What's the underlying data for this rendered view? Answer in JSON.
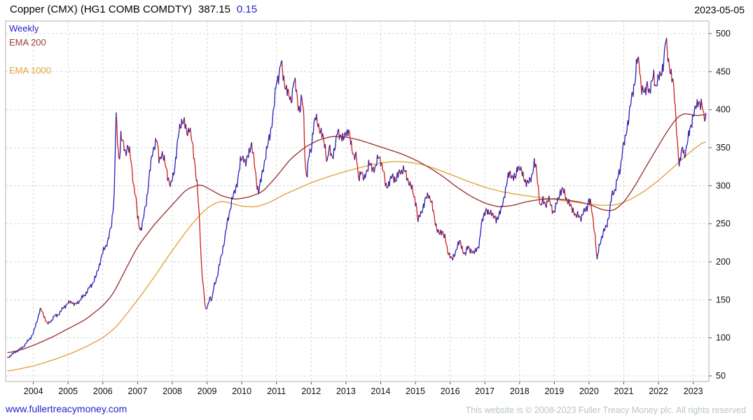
{
  "header": {
    "title": "Copper (CMX) (HG1 COMB COMDTY)",
    "price": "387.15",
    "change": "0.15",
    "date": "2023-05-05"
  },
  "footer": {
    "link": "www.fullertreacymoney.com",
    "copyright": "This website is © 2008-2023 Fuller Treacy Money plc. All rights reserved"
  },
  "chart_data": {
    "type": "line",
    "style": "weekly-ohlc-bars",
    "title": "Copper (CMX) (HG1 COMB COMDTY)",
    "legend": [
      "Weekly",
      "EMA 200",
      "EMA 1000"
    ],
    "legend_position": "top-left",
    "grid": "dashed",
    "x_domain": [
      2003.2,
      2023.45
    ],
    "y_domain": [
      50,
      500
    ],
    "x_ticks": [
      "2004",
      "2005",
      "2006",
      "2007",
      "2008",
      "2009",
      "2010",
      "2011",
      "2012",
      "2013",
      "2014",
      "2015",
      "2016",
      "2017",
      "2018",
      "2019",
      "2020",
      "2021",
      "2022",
      "2023"
    ],
    "y_ticks": [
      50,
      100,
      150,
      200,
      250,
      300,
      350,
      400,
      450,
      500
    ],
    "colors": {
      "up": "#2222bb",
      "down": "#cc2020",
      "ema200": "#9b3b38",
      "ema1000": "#e1a53e",
      "grid": "#d8d8d8",
      "frame": "#b0b0b0",
      "axis_text": "#111111"
    },
    "price_anchors": [
      [
        2003.25,
        73
      ],
      [
        2003.4,
        79
      ],
      [
        2003.55,
        83
      ],
      [
        2003.7,
        88
      ],
      [
        2003.85,
        96
      ],
      [
        2004.0,
        106
      ],
      [
        2004.1,
        122
      ],
      [
        2004.2,
        138
      ],
      [
        2004.3,
        130
      ],
      [
        2004.4,
        118
      ],
      [
        2004.5,
        122
      ],
      [
        2004.6,
        128
      ],
      [
        2004.75,
        132
      ],
      [
        2004.9,
        142
      ],
      [
        2005.0,
        145
      ],
      [
        2005.1,
        148
      ],
      [
        2005.2,
        143
      ],
      [
        2005.35,
        150
      ],
      [
        2005.5,
        158
      ],
      [
        2005.65,
        168
      ],
      [
        2005.8,
        180
      ],
      [
        2005.95,
        205
      ],
      [
        2006.05,
        218
      ],
      [
        2006.15,
        228
      ],
      [
        2006.25,
        248
      ],
      [
        2006.33,
        290
      ],
      [
        2006.38,
        395
      ],
      [
        2006.42,
        360
      ],
      [
        2006.47,
        330
      ],
      [
        2006.52,
        368
      ],
      [
        2006.58,
        355
      ],
      [
        2006.65,
        342
      ],
      [
        2006.72,
        355
      ],
      [
        2006.8,
        335
      ],
      [
        2006.88,
        305
      ],
      [
        2006.95,
        285
      ],
      [
        2007.0,
        258
      ],
      [
        2007.08,
        242
      ],
      [
        2007.15,
        252
      ],
      [
        2007.25,
        278
      ],
      [
        2007.35,
        318
      ],
      [
        2007.45,
        348
      ],
      [
        2007.55,
        362
      ],
      [
        2007.62,
        332
      ],
      [
        2007.7,
        345
      ],
      [
        2007.78,
        330
      ],
      [
        2007.85,
        318
      ],
      [
        2007.95,
        298
      ],
      [
        2008.05,
        318
      ],
      [
        2008.12,
        345
      ],
      [
        2008.2,
        372
      ],
      [
        2008.28,
        388
      ],
      [
        2008.35,
        382
      ],
      [
        2008.42,
        368
      ],
      [
        2008.5,
        378
      ],
      [
        2008.58,
        352
      ],
      [
        2008.65,
        330
      ],
      [
        2008.72,
        300
      ],
      [
        2008.78,
        255
      ],
      [
        2008.84,
        195
      ],
      [
        2008.9,
        165
      ],
      [
        2008.96,
        135
      ],
      [
        2009.02,
        142
      ],
      [
        2009.08,
        155
      ],
      [
        2009.14,
        148
      ],
      [
        2009.2,
        168
      ],
      [
        2009.3,
        182
      ],
      [
        2009.4,
        205
      ],
      [
        2009.5,
        228
      ],
      [
        2009.6,
        255
      ],
      [
        2009.7,
        278
      ],
      [
        2009.8,
        292
      ],
      [
        2009.9,
        312
      ],
      [
        2009.97,
        332
      ],
      [
        2010.05,
        340
      ],
      [
        2010.12,
        328
      ],
      [
        2010.2,
        342
      ],
      [
        2010.28,
        358
      ],
      [
        2010.35,
        332
      ],
      [
        2010.42,
        308
      ],
      [
        2010.48,
        292
      ],
      [
        2010.55,
        305
      ],
      [
        2010.65,
        332
      ],
      [
        2010.75,
        352
      ],
      [
        2010.85,
        378
      ],
      [
        2010.93,
        402
      ],
      [
        2011.0,
        438
      ],
      [
        2011.08,
        448
      ],
      [
        2011.13,
        462
      ],
      [
        2011.2,
        442
      ],
      [
        2011.28,
        428
      ],
      [
        2011.35,
        418
      ],
      [
        2011.42,
        412
      ],
      [
        2011.5,
        438
      ],
      [
        2011.56,
        428
      ],
      [
        2011.62,
        408
      ],
      [
        2011.68,
        398
      ],
      [
        2011.72,
        415
      ],
      [
        2011.78,
        398
      ],
      [
        2011.83,
        325
      ],
      [
        2011.88,
        312
      ],
      [
        2011.93,
        338
      ],
      [
        2012.0,
        348
      ],
      [
        2012.06,
        378
      ],
      [
        2012.12,
        388
      ],
      [
        2012.2,
        382
      ],
      [
        2012.3,
        368
      ],
      [
        2012.4,
        352
      ],
      [
        2012.46,
        332
      ],
      [
        2012.52,
        348
      ],
      [
        2012.6,
        338
      ],
      [
        2012.7,
        352
      ],
      [
        2012.76,
        372
      ],
      [
        2012.84,
        368
      ],
      [
        2012.92,
        358
      ],
      [
        2013.0,
        372
      ],
      [
        2013.08,
        372
      ],
      [
        2013.15,
        352
      ],
      [
        2013.22,
        342
      ],
      [
        2013.3,
        338
      ],
      [
        2013.36,
        308
      ],
      [
        2013.44,
        322
      ],
      [
        2013.52,
        305
      ],
      [
        2013.58,
        318
      ],
      [
        2013.66,
        330
      ],
      [
        2013.75,
        322
      ],
      [
        2013.85,
        325
      ],
      [
        2013.95,
        338
      ],
      [
        2014.02,
        332
      ],
      [
        2014.08,
        318
      ],
      [
        2014.15,
        298
      ],
      [
        2014.25,
        305
      ],
      [
        2014.35,
        312
      ],
      [
        2014.45,
        308
      ],
      [
        2014.55,
        318
      ],
      [
        2014.65,
        322
      ],
      [
        2014.75,
        312
      ],
      [
        2014.85,
        302
      ],
      [
        2014.95,
        288
      ],
      [
        2015.02,
        278
      ],
      [
        2015.07,
        252
      ],
      [
        2015.14,
        262
      ],
      [
        2015.22,
        272
      ],
      [
        2015.3,
        282
      ],
      [
        2015.38,
        290
      ],
      [
        2015.46,
        278
      ],
      [
        2015.55,
        258
      ],
      [
        2015.63,
        242
      ],
      [
        2015.7,
        235
      ],
      [
        2015.78,
        242
      ],
      [
        2015.85,
        232
      ],
      [
        2015.93,
        212
      ],
      [
        2016.0,
        210
      ],
      [
        2016.06,
        202
      ],
      [
        2016.13,
        208
      ],
      [
        2016.2,
        222
      ],
      [
        2016.28,
        226
      ],
      [
        2016.36,
        216
      ],
      [
        2016.44,
        210
      ],
      [
        2016.52,
        220
      ],
      [
        2016.6,
        215
      ],
      [
        2016.68,
        210
      ],
      [
        2016.76,
        218
      ],
      [
        2016.84,
        222
      ],
      [
        2016.9,
        248
      ],
      [
        2016.96,
        262
      ],
      [
        2017.03,
        268
      ],
      [
        2017.1,
        262
      ],
      [
        2017.18,
        268
      ],
      [
        2017.25,
        258
      ],
      [
        2017.33,
        255
      ],
      [
        2017.4,
        262
      ],
      [
        2017.48,
        268
      ],
      [
        2017.56,
        288
      ],
      [
        2017.64,
        305
      ],
      [
        2017.72,
        318
      ],
      [
        2017.8,
        312
      ],
      [
        2017.88,
        308
      ],
      [
        2017.95,
        328
      ],
      [
        2018.02,
        322
      ],
      [
        2018.1,
        312
      ],
      [
        2018.18,
        306
      ],
      [
        2018.26,
        302
      ],
      [
        2018.34,
        312
      ],
      [
        2018.42,
        330
      ],
      [
        2018.48,
        322
      ],
      [
        2018.54,
        298
      ],
      [
        2018.6,
        272
      ],
      [
        2018.68,
        280
      ],
      [
        2018.76,
        276
      ],
      [
        2018.84,
        282
      ],
      [
        2018.92,
        272
      ],
      [
        2019.0,
        265
      ],
      [
        2019.08,
        278
      ],
      [
        2019.16,
        292
      ],
      [
        2019.24,
        294
      ],
      [
        2019.32,
        288
      ],
      [
        2019.4,
        278
      ],
      [
        2019.48,
        272
      ],
      [
        2019.56,
        268
      ],
      [
        2019.62,
        258
      ],
      [
        2019.7,
        262
      ],
      [
        2019.78,
        258
      ],
      [
        2019.86,
        266
      ],
      [
        2019.94,
        272
      ],
      [
        2020.0,
        282
      ],
      [
        2020.06,
        272
      ],
      [
        2020.12,
        255
      ],
      [
        2020.18,
        232
      ],
      [
        2020.23,
        200
      ],
      [
        2020.28,
        218
      ],
      [
        2020.34,
        230
      ],
      [
        2020.42,
        238
      ],
      [
        2020.5,
        248
      ],
      [
        2020.58,
        262
      ],
      [
        2020.66,
        288
      ],
      [
        2020.74,
        295
      ],
      [
        2020.82,
        308
      ],
      [
        2020.9,
        322
      ],
      [
        2020.97,
        352
      ],
      [
        2021.04,
        358
      ],
      [
        2021.1,
        378
      ],
      [
        2021.16,
        398
      ],
      [
        2021.22,
        412
      ],
      [
        2021.28,
        425
      ],
      [
        2021.34,
        448
      ],
      [
        2021.38,
        468
      ],
      [
        2021.44,
        458
      ],
      [
        2021.5,
        432
      ],
      [
        2021.56,
        428
      ],
      [
        2021.62,
        418
      ],
      [
        2021.68,
        435
      ],
      [
        2021.74,
        425
      ],
      [
        2021.8,
        432
      ],
      [
        2021.86,
        445
      ],
      [
        2021.92,
        432
      ],
      [
        2021.98,
        440
      ],
      [
        2022.04,
        442
      ],
      [
        2022.1,
        452
      ],
      [
        2022.16,
        468
      ],
      [
        2022.21,
        492
      ],
      [
        2022.26,
        472
      ],
      [
        2022.32,
        458
      ],
      [
        2022.38,
        442
      ],
      [
        2022.44,
        428
      ],
      [
        2022.5,
        392
      ],
      [
        2022.55,
        352
      ],
      [
        2022.6,
        322
      ],
      [
        2022.65,
        342
      ],
      [
        2022.7,
        355
      ],
      [
        2022.75,
        338
      ],
      [
        2022.8,
        345
      ],
      [
        2022.85,
        362
      ],
      [
        2022.9,
        378
      ],
      [
        2022.96,
        382
      ],
      [
        2023.02,
        392
      ],
      [
        2023.08,
        408
      ],
      [
        2023.14,
        412
      ],
      [
        2023.2,
        402
      ],
      [
        2023.26,
        408
      ],
      [
        2023.32,
        392
      ],
      [
        2023.38,
        387
      ]
    ],
    "ema200_anchors": [
      [
        2003.25,
        80
      ],
      [
        2003.7,
        85
      ],
      [
        2004.1,
        92
      ],
      [
        2004.5,
        100
      ],
      [
        2005.0,
        112
      ],
      [
        2005.5,
        124
      ],
      [
        2006.0,
        142
      ],
      [
        2006.3,
        158
      ],
      [
        2006.6,
        185
      ],
      [
        2007.0,
        220
      ],
      [
        2007.5,
        250
      ],
      [
        2008.0,
        275
      ],
      [
        2008.4,
        295
      ],
      [
        2008.8,
        302
      ],
      [
        2009.1,
        295
      ],
      [
        2009.4,
        287
      ],
      [
        2009.8,
        282
      ],
      [
        2010.2,
        285
      ],
      [
        2010.6,
        292
      ],
      [
        2011.0,
        312
      ],
      [
        2011.4,
        335
      ],
      [
        2011.8,
        350
      ],
      [
        2012.2,
        360
      ],
      [
        2012.6,
        365
      ],
      [
        2013.0,
        364
      ],
      [
        2013.4,
        360
      ],
      [
        2013.8,
        354
      ],
      [
        2014.2,
        348
      ],
      [
        2014.6,
        342
      ],
      [
        2015.0,
        334
      ],
      [
        2015.4,
        324
      ],
      [
        2015.8,
        312
      ],
      [
        2016.2,
        298
      ],
      [
        2016.6,
        286
      ],
      [
        2017.0,
        277
      ],
      [
        2017.4,
        272
      ],
      [
        2017.8,
        274
      ],
      [
        2018.2,
        279
      ],
      [
        2018.6,
        282
      ],
      [
        2019.0,
        283
      ],
      [
        2019.4,
        281
      ],
      [
        2019.8,
        278
      ],
      [
        2020.1,
        274
      ],
      [
        2020.4,
        268
      ],
      [
        2020.7,
        267
      ],
      [
        2021.0,
        278
      ],
      [
        2021.3,
        298
      ],
      [
        2021.6,
        322
      ],
      [
        2021.9,
        345
      ],
      [
        2022.2,
        368
      ],
      [
        2022.5,
        388
      ],
      [
        2022.7,
        395
      ],
      [
        2022.9,
        394
      ],
      [
        2023.1,
        392
      ],
      [
        2023.38,
        394
      ]
    ],
    "ema1000_anchors": [
      [
        2003.25,
        56
      ],
      [
        2004.0,
        63
      ],
      [
        2004.5,
        70
      ],
      [
        2005.0,
        78
      ],
      [
        2005.5,
        88
      ],
      [
        2006.0,
        100
      ],
      [
        2006.4,
        115
      ],
      [
        2006.8,
        138
      ],
      [
        2007.2,
        162
      ],
      [
        2007.6,
        188
      ],
      [
        2008.0,
        215
      ],
      [
        2008.4,
        240
      ],
      [
        2008.8,
        262
      ],
      [
        2009.1,
        274
      ],
      [
        2009.4,
        280
      ],
      [
        2009.7,
        277
      ],
      [
        2010.0,
        273
      ],
      [
        2010.4,
        272
      ],
      [
        2010.8,
        278
      ],
      [
        2011.2,
        288
      ],
      [
        2011.6,
        296
      ],
      [
        2012.0,
        304
      ],
      [
        2012.5,
        312
      ],
      [
        2013.0,
        319
      ],
      [
        2013.5,
        325
      ],
      [
        2014.0,
        330
      ],
      [
        2014.4,
        332
      ],
      [
        2014.8,
        331
      ],
      [
        2015.2,
        328
      ],
      [
        2015.6,
        322
      ],
      [
        2016.0,
        315
      ],
      [
        2016.5,
        306
      ],
      [
        2017.0,
        298
      ],
      [
        2017.5,
        292
      ],
      [
        2018.0,
        288
      ],
      [
        2018.5,
        285
      ],
      [
        2019.0,
        282
      ],
      [
        2019.5,
        279
      ],
      [
        2020.0,
        276
      ],
      [
        2020.4,
        274
      ],
      [
        2020.8,
        275
      ],
      [
        2021.2,
        282
      ],
      [
        2021.6,
        293
      ],
      [
        2022.0,
        307
      ],
      [
        2022.4,
        323
      ],
      [
        2022.8,
        340
      ],
      [
        2023.1,
        351
      ],
      [
        2023.38,
        360
      ]
    ]
  }
}
